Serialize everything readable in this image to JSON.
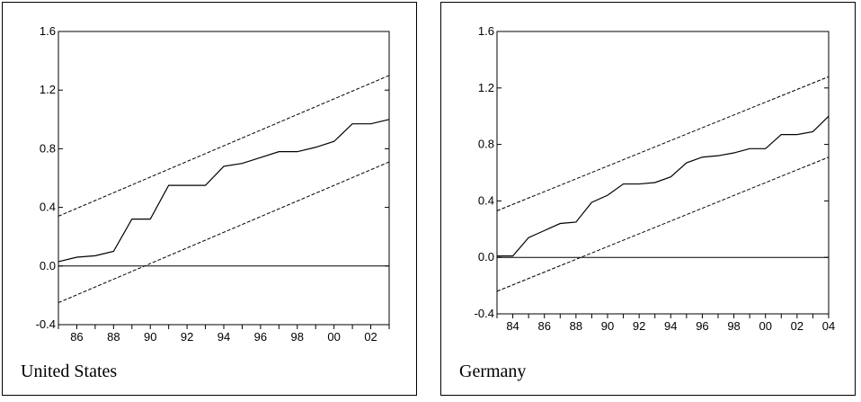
{
  "chart_data": [
    {
      "type": "line",
      "label": "United States",
      "x": [
        1985,
        1986,
        1987,
        1988,
        1989,
        1990,
        1991,
        1992,
        1993,
        1994,
        1995,
        1996,
        1997,
        1998,
        1999,
        2000,
        2001,
        2002,
        2003
      ],
      "xticks": [
        1986,
        1988,
        1990,
        1992,
        1994,
        1996,
        1998,
        2000,
        2002
      ],
      "xticklabels": [
        "86",
        "88",
        "90",
        "92",
        "94",
        "96",
        "98",
        "00",
        "02"
      ],
      "xlim": [
        1985,
        2003
      ],
      "ylim": [
        -0.4,
        1.6
      ],
      "yticks": [
        -0.4,
        0.0,
        0.4,
        0.8,
        1.2,
        1.6
      ],
      "yticklabels": [
        "-0.4",
        "0.0",
        "0.4",
        "0.8",
        "1.2",
        "1.6"
      ],
      "zero_line": 0,
      "series": [
        {
          "style": "solid",
          "values": [
            0.03,
            0.06,
            0.07,
            0.1,
            0.32,
            0.32,
            0.55,
            0.55,
            0.55,
            0.68,
            0.7,
            0.74,
            0.78,
            0.78,
            0.81,
            0.85,
            0.97,
            0.97,
            1.0
          ]
        },
        {
          "style": "dashed",
          "values_at_ends": [
            0.34,
            1.3
          ]
        },
        {
          "style": "dashed",
          "values_at_ends": [
            -0.25,
            0.71
          ]
        }
      ]
    },
    {
      "type": "line",
      "label": "Germany",
      "x": [
        1983,
        1984,
        1985,
        1986,
        1987,
        1988,
        1989,
        1990,
        1991,
        1992,
        1993,
        1994,
        1995,
        1996,
        1997,
        1998,
        1999,
        2000,
        2001,
        2002,
        2003,
        2004
      ],
      "xticks": [
        1984,
        1986,
        1988,
        1990,
        1992,
        1994,
        1996,
        1998,
        2000,
        2002,
        2004
      ],
      "xticklabels": [
        "84",
        "86",
        "88",
        "90",
        "92",
        "94",
        "96",
        "98",
        "00",
        "02",
        "04"
      ],
      "xlim": [
        1983,
        2004
      ],
      "ylim": [
        -0.4,
        1.6
      ],
      "yticks": [
        -0.4,
        0.0,
        0.4,
        0.8,
        1.2,
        1.6
      ],
      "yticklabels": [
        "-0.4",
        "0.0",
        "0.4",
        "0.8",
        "1.2",
        "1.6"
      ],
      "zero_line": 0,
      "series": [
        {
          "style": "solid",
          "values": [
            0.01,
            0.01,
            0.14,
            0.19,
            0.24,
            0.25,
            0.39,
            0.44,
            0.52,
            0.52,
            0.53,
            0.57,
            0.67,
            0.71,
            0.72,
            0.74,
            0.77,
            0.77,
            0.87,
            0.87,
            0.89,
            1.0
          ]
        },
        {
          "style": "dashed",
          "values_at_ends": [
            0.33,
            1.28
          ]
        },
        {
          "style": "dashed",
          "values_at_ends": [
            -0.24,
            0.71
          ]
        }
      ]
    }
  ]
}
